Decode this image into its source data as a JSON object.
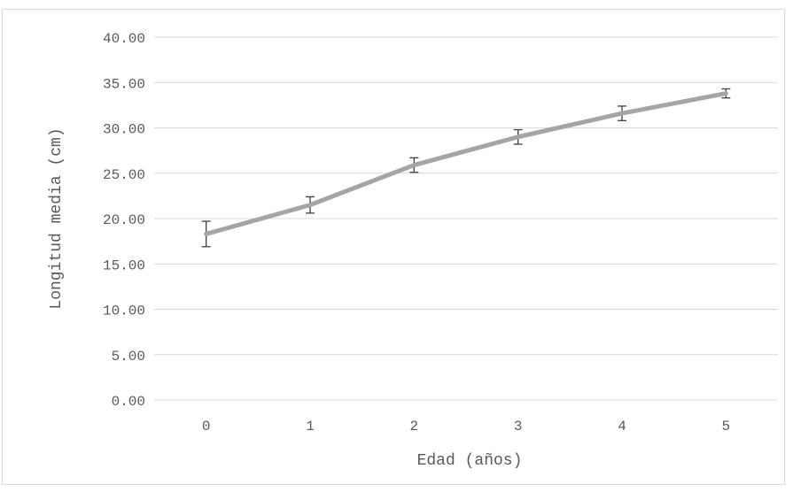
{
  "chart_data": {
    "type": "line",
    "title": "",
    "xlabel": "Edad (años)",
    "ylabel": "Longitud media (cm)",
    "categories": [
      "0",
      "1",
      "2",
      "3",
      "4",
      "5"
    ],
    "values": [
      18.3,
      21.5,
      25.9,
      29.0,
      31.6,
      33.8
    ],
    "error_low": [
      1.4,
      0.9,
      0.8,
      0.8,
      0.8,
      0.5
    ],
    "error_high": [
      1.4,
      0.9,
      0.8,
      0.8,
      0.8,
      0.5
    ],
    "ylim": [
      0,
      40
    ],
    "yticks": [
      "0.00",
      "5.00",
      "10.00",
      "15.00",
      "20.00",
      "25.00",
      "30.00",
      "35.00",
      "40.00"
    ],
    "ytick_values": [
      0,
      5,
      10,
      15,
      20,
      25,
      30,
      35,
      40
    ],
    "grid": true,
    "legend": "none",
    "colors": {
      "line": "#a5a5a5",
      "error_bar": "#404040",
      "grid": "#d9d9d9",
      "text": "#595959"
    }
  }
}
